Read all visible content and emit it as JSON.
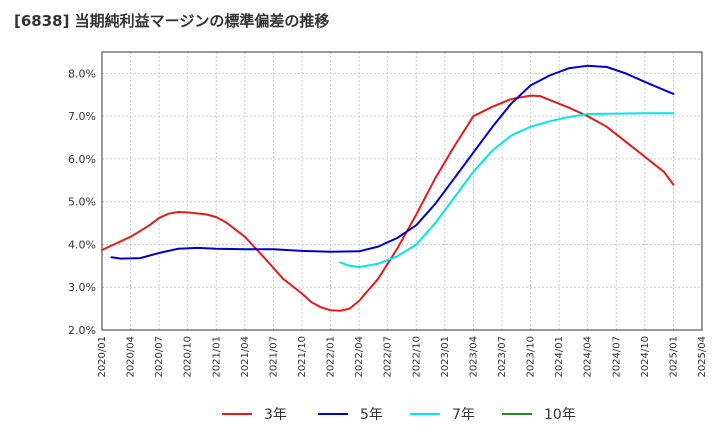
{
  "chart_data": {
    "type": "line",
    "title": "[6838]  当期純利益マージンの標準偏差の推移",
    "xlabel": "",
    "ylabel": "",
    "x_ticks": [
      "2020/01",
      "2020/04",
      "2020/07",
      "2020/10",
      "2021/01",
      "2021/04",
      "2021/07",
      "2021/10",
      "2022/01",
      "2022/04",
      "2022/07",
      "2022/10",
      "2023/01",
      "2023/04",
      "2023/07",
      "2023/10",
      "2024/01",
      "2024/04",
      "2024/07",
      "2024/10",
      "2025/01",
      "2025/04"
    ],
    "y_ticks": [
      "2.0%",
      "3.0%",
      "4.0%",
      "5.0%",
      "6.0%",
      "7.0%",
      "8.0%"
    ],
    "ylim": [
      2.0,
      8.5
    ],
    "grid": true,
    "legend_position": "bottom",
    "series": [
      {
        "name": "3年",
        "color": "#e41a1c",
        "points": [
          [
            "2020/01",
            3.87
          ],
          [
            "2020/04",
            4.18
          ],
          [
            "2020/06",
            4.45
          ],
          [
            "2020/07",
            4.62
          ],
          [
            "2020/08",
            4.72
          ],
          [
            "2020/09",
            4.76
          ],
          [
            "2020/10",
            4.75
          ],
          [
            "2020/12",
            4.7
          ],
          [
            "2021/01",
            4.64
          ],
          [
            "2021/02",
            4.52
          ],
          [
            "2021/04",
            4.18
          ],
          [
            "2021/06",
            3.7
          ],
          [
            "2021/08",
            3.2
          ],
          [
            "2021/10",
            2.85
          ],
          [
            "2021/11",
            2.65
          ],
          [
            "2021/12",
            2.53
          ],
          [
            "2022/01",
            2.46
          ],
          [
            "2022/02",
            2.45
          ],
          [
            "2022/03",
            2.5
          ],
          [
            "2022/04",
            2.68
          ],
          [
            "2022/06",
            3.2
          ],
          [
            "2022/08",
            3.9
          ],
          [
            "2022/10",
            4.7
          ],
          [
            "2022/12",
            5.55
          ],
          [
            "2023/02",
            6.3
          ],
          [
            "2023/04",
            7.0
          ],
          [
            "2023/06",
            7.22
          ],
          [
            "2023/08",
            7.4
          ],
          [
            "2023/10",
            7.48
          ],
          [
            "2023/11",
            7.47
          ],
          [
            "2023/12",
            7.38
          ],
          [
            "2024/02",
            7.2
          ],
          [
            "2024/04",
            7.0
          ],
          [
            "2024/06",
            6.75
          ],
          [
            "2024/08",
            6.4
          ],
          [
            "2024/10",
            6.05
          ],
          [
            "2024/12",
            5.7
          ],
          [
            "2025/01",
            5.4
          ]
        ]
      },
      {
        "name": "5年",
        "color": "#0000cc",
        "points": [
          [
            "2020/02",
            3.7
          ],
          [
            "2020/03",
            3.67
          ],
          [
            "2020/05",
            3.68
          ],
          [
            "2020/07",
            3.8
          ],
          [
            "2020/09",
            3.9
          ],
          [
            "2020/11",
            3.92
          ],
          [
            "2021/01",
            3.9
          ],
          [
            "2021/04",
            3.89
          ],
          [
            "2021/07",
            3.89
          ],
          [
            "2021/10",
            3.85
          ],
          [
            "2022/01",
            3.83
          ],
          [
            "2022/04",
            3.84
          ],
          [
            "2022/06",
            3.95
          ],
          [
            "2022/08",
            4.15
          ],
          [
            "2022/10",
            4.45
          ],
          [
            "2022/12",
            4.95
          ],
          [
            "2023/02",
            5.55
          ],
          [
            "2023/04",
            6.15
          ],
          [
            "2023/06",
            6.75
          ],
          [
            "2023/08",
            7.3
          ],
          [
            "2023/10",
            7.72
          ],
          [
            "2023/12",
            7.95
          ],
          [
            "2024/02",
            8.12
          ],
          [
            "2024/04",
            8.18
          ],
          [
            "2024/06",
            8.15
          ],
          [
            "2024/08",
            8.0
          ],
          [
            "2024/10",
            7.8
          ],
          [
            "2025/01",
            7.52
          ]
        ]
      },
      {
        "name": "7年",
        "color": "#00e5ee",
        "points": [
          [
            "2022/02",
            3.58
          ],
          [
            "2022/03",
            3.5
          ],
          [
            "2022/04",
            3.47
          ],
          [
            "2022/06",
            3.55
          ],
          [
            "2022/08",
            3.72
          ],
          [
            "2022/10",
            4.0
          ],
          [
            "2022/12",
            4.5
          ],
          [
            "2023/02",
            5.1
          ],
          [
            "2023/04",
            5.7
          ],
          [
            "2023/06",
            6.2
          ],
          [
            "2023/08",
            6.55
          ],
          [
            "2023/10",
            6.75
          ],
          [
            "2023/12",
            6.88
          ],
          [
            "2024/02",
            6.98
          ],
          [
            "2024/04",
            7.05
          ],
          [
            "2024/07",
            7.06
          ],
          [
            "2024/10",
            7.07
          ],
          [
            "2025/01",
            7.07
          ]
        ]
      },
      {
        "name": "10年",
        "color": "#228b22",
        "points": []
      }
    ]
  }
}
